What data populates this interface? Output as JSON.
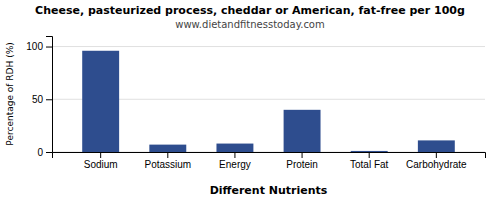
{
  "chart_data": {
    "type": "bar",
    "title": "Cheese, pasteurized process, cheddar or American, fat-free per 100g",
    "subtitle": "www.dietandfitnesstoday.com",
    "xlabel": "Different Nutrients",
    "ylabel": "Percentage of RDH (%)",
    "categories": [
      "Sodium",
      "Potassium",
      "Energy",
      "Protein",
      "Total Fat",
      "Carbohydrate"
    ],
    "values": [
      96,
      7,
      8,
      40,
      1,
      11
    ],
    "color": "#2e4d8e",
    "ylim": [
      0,
      110
    ],
    "yticks": [
      0,
      50,
      100
    ],
    "grid": true
  }
}
